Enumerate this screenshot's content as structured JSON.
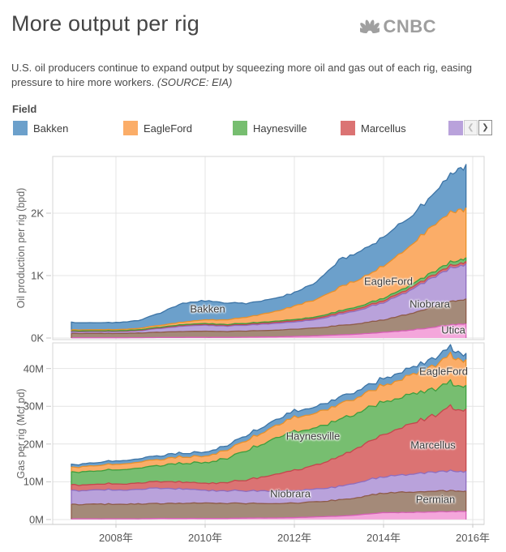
{
  "page": {
    "title": "More output per rig",
    "logo_text": "CNBC",
    "subtitle_main": "U.S. oil producers continue to expand output by squeezing more oil and gas out of each rig, easing pressure to hire more workers. ",
    "subtitle_source": "(SOURCE: EIA)"
  },
  "legend": {
    "label": "Field",
    "items": [
      {
        "label": "Bakken",
        "color": "#6CA0CB"
      },
      {
        "label": "EagleFord",
        "color": "#FBAD68"
      },
      {
        "label": "Haynesville",
        "color": "#77BE70"
      },
      {
        "label": "Marcellus",
        "color": "#DB7373"
      },
      {
        "label": "",
        "color": "#B9A2DB",
        "partial": true
      }
    ],
    "pager": {
      "prev": "❮",
      "next": "❯"
    }
  },
  "chart_data": [
    {
      "type": "area",
      "stacked": true,
      "ylabel": "Oil production per rig (bpd)",
      "unit": "barrels per day",
      "x": [
        2007,
        2007.5,
        2008,
        2008.5,
        2009,
        2009.5,
        2010,
        2010.5,
        2011,
        2011.5,
        2012,
        2012.5,
        2013,
        2013.5,
        2014,
        2014.5,
        2015,
        2015.5,
        2015.85
      ],
      "series": [
        {
          "name": "Utica",
          "color": "#F4A6DB",
          "edge": "#D65FB6",
          "values": [
            4,
            4,
            4,
            5,
            8,
            10,
            10,
            10,
            14,
            18,
            25,
            35,
            50,
            65,
            90,
            120,
            160,
            210,
            230
          ]
        },
        {
          "name": "Permian",
          "color": "#A48A79",
          "edge": "#8E5B49",
          "values": [
            70,
            68,
            70,
            74,
            85,
            95,
            100,
            95,
            100,
            105,
            115,
            125,
            150,
            170,
            200,
            250,
            310,
            370,
            400
          ]
        },
        {
          "name": "Niobrara",
          "color": "#B9A2DB",
          "edge": "#8E6CBF",
          "values": [
            28,
            28,
            30,
            36,
            60,
            85,
            95,
            88,
            95,
            105,
            115,
            135,
            180,
            220,
            280,
            360,
            450,
            530,
            560
          ]
        },
        {
          "name": "Marcellus",
          "color": "#DB7373",
          "edge": "#C4474D",
          "values": [
            8,
            8,
            8,
            9,
            11,
            13,
            13,
            13,
            15,
            17,
            19,
            22,
            26,
            30,
            33,
            36,
            38,
            40,
            40
          ]
        },
        {
          "name": "Haynesville",
          "color": "#77BE70",
          "edge": "#3E9E3E",
          "values": [
            6,
            6,
            6,
            7,
            9,
            11,
            13,
            13,
            15,
            17,
            19,
            22,
            27,
            32,
            38,
            44,
            50,
            56,
            60
          ]
        },
        {
          "name": "EagleFord",
          "color": "#FBAD68",
          "edge": "#E8902A",
          "values": [
            16,
            16,
            18,
            22,
            30,
            40,
            60,
            75,
            105,
            150,
            215,
            280,
            380,
            440,
            520,
            620,
            720,
            790,
            800
          ]
        },
        {
          "name": "Bakken",
          "color": "#6CA0CB",
          "edge": "#3D74A6",
          "values": [
            118,
            115,
            114,
            127,
            197,
            301,
            309,
            266,
            216,
            208,
            212,
            281,
            437,
            443,
            459,
            470,
            472,
            604,
            690
          ]
        }
      ],
      "yticks": [
        {
          "label": "0K",
          "value": 0
        },
        {
          "label": "1K",
          "value": 1000
        },
        {
          "label": "2K",
          "value": 2000
        }
      ],
      "xticks": [
        {
          "label": "2008年",
          "value": 2008
        },
        {
          "label": "2010年",
          "value": 2010
        },
        {
          "label": "2012年",
          "value": 2012
        },
        {
          "label": "2014年",
          "value": 2014
        },
        {
          "label": "2016年",
          "value": 2016
        }
      ],
      "show_xtick_labels": false,
      "ylim": [
        -26,
        2909
      ],
      "grid": true,
      "annotations": [
        {
          "text": "Bakken",
          "x": 256,
          "y": 381
        },
        {
          "text": "EagleFord",
          "x": 479,
          "y": 347
        },
        {
          "text": "Niobrara",
          "x": 530,
          "y": 375
        },
        {
          "text": "Utica",
          "x": 559,
          "y": 407
        }
      ]
    },
    {
      "type": "area",
      "stacked": true,
      "ylabel": "Gas per rig (Mcf pd)",
      "unit": "million Mcf per day",
      "x": [
        2007,
        2007.5,
        2008,
        2008.5,
        2009,
        2009.5,
        2010,
        2010.5,
        2011,
        2011.5,
        2012,
        2012.5,
        2013,
        2013.5,
        2014,
        2014.5,
        2015,
        2015.5,
        2015.85
      ],
      "series": [
        {
          "name": "Utica",
          "color": "#F4A6DB",
          "edge": "#D65FB6",
          "values": [
            0.2,
            0.2,
            0.2,
            0.2,
            0.3,
            0.3,
            0.3,
            0.3,
            0.4,
            0.4,
            0.5,
            0.7,
            0.9,
            1.3,
            1.8,
            1.9,
            2.0,
            2.1,
            2.2
          ]
        },
        {
          "name": "Permian",
          "color": "#A48A79",
          "edge": "#8E5B49",
          "values": [
            3.8,
            3.8,
            3.9,
            3.9,
            3.9,
            4.0,
            4.1,
            4.0,
            3.9,
            3.8,
            3.8,
            4.0,
            4.3,
            4.7,
            5.2,
            5.3,
            5.4,
            5.5,
            5.4
          ]
        },
        {
          "name": "Niobrara",
          "color": "#B9A2DB",
          "edge": "#8E6CBF",
          "values": [
            3.7,
            3.7,
            3.8,
            3.9,
            4.0,
            3.8,
            3.3,
            3.4,
            3.3,
            3.3,
            3.3,
            3.4,
            3.6,
            4.0,
            4.4,
            4.7,
            5.0,
            5.2,
            5.2
          ]
        },
        {
          "name": "Marcellus",
          "color": "#DB7373",
          "edge": "#C4474D",
          "values": [
            1.5,
            1.5,
            1.6,
            1.7,
            1.8,
            1.8,
            1.8,
            2.2,
            3.0,
            4.2,
            5.4,
            6.5,
            7.8,
            9.5,
            11.2,
            13.0,
            14.5,
            16.8,
            16.5
          ]
        },
        {
          "name": "Haynesville",
          "color": "#77BE70",
          "edge": "#3E9E3E",
          "values": [
            3.3,
            3.5,
            3.7,
            3.9,
            4.3,
            4.9,
            5.5,
            6.5,
            8.0,
            9.2,
            10.3,
            10.0,
            9.7,
            9.2,
            8.6,
            8.0,
            7.3,
            6.5,
            6.3
          ]
        },
        {
          "name": "EagleFord",
          "color": "#FBAD68",
          "edge": "#E8902A",
          "values": [
            1.3,
            1.4,
            1.5,
            1.6,
            1.6,
            1.7,
            1.7,
            2.2,
            2.8,
            3.2,
            3.7,
            3.9,
            4.1,
            4.2,
            4.4,
            5.0,
            5.8,
            7.2,
            6.8
          ]
        },
        {
          "name": "Bakken",
          "color": "#6CA0CB",
          "edge": "#3D74A6",
          "values": [
            0.7,
            0.8,
            0.9,
            0.9,
            1.0,
            1.0,
            1.1,
            1.2,
            1.4,
            1.5,
            1.7,
            1.7,
            1.8,
            1.8,
            1.8,
            1.9,
            2.0,
            2.0,
            1.6
          ]
        }
      ],
      "yticks": [
        {
          "label": "0M",
          "value": 0
        },
        {
          "label": "10M",
          "value": 10
        },
        {
          "label": "20M",
          "value": 20
        },
        {
          "label": "30M",
          "value": 30
        },
        {
          "label": "40M",
          "value": 40
        }
      ],
      "xticks": [
        {
          "label": "2008年",
          "value": 2008
        },
        {
          "label": "2010年",
          "value": 2010
        },
        {
          "label": "2012年",
          "value": 2012
        },
        {
          "label": "2014年",
          "value": 2014
        },
        {
          "label": "2016年",
          "value": 2016
        }
      ],
      "show_xtick_labels": true,
      "ylim": [
        -1.3,
        46.8
      ],
      "grid": true,
      "annotations": [
        {
          "text": "EagleFord",
          "x": 547,
          "y": 458
        },
        {
          "text": "Haynesville",
          "x": 386,
          "y": 538
        },
        {
          "text": "Marcellus",
          "x": 534,
          "y": 549
        },
        {
          "text": "Niobrara",
          "x": 358,
          "y": 609
        },
        {
          "text": "Permian",
          "x": 537,
          "y": 616
        }
      ]
    }
  ]
}
